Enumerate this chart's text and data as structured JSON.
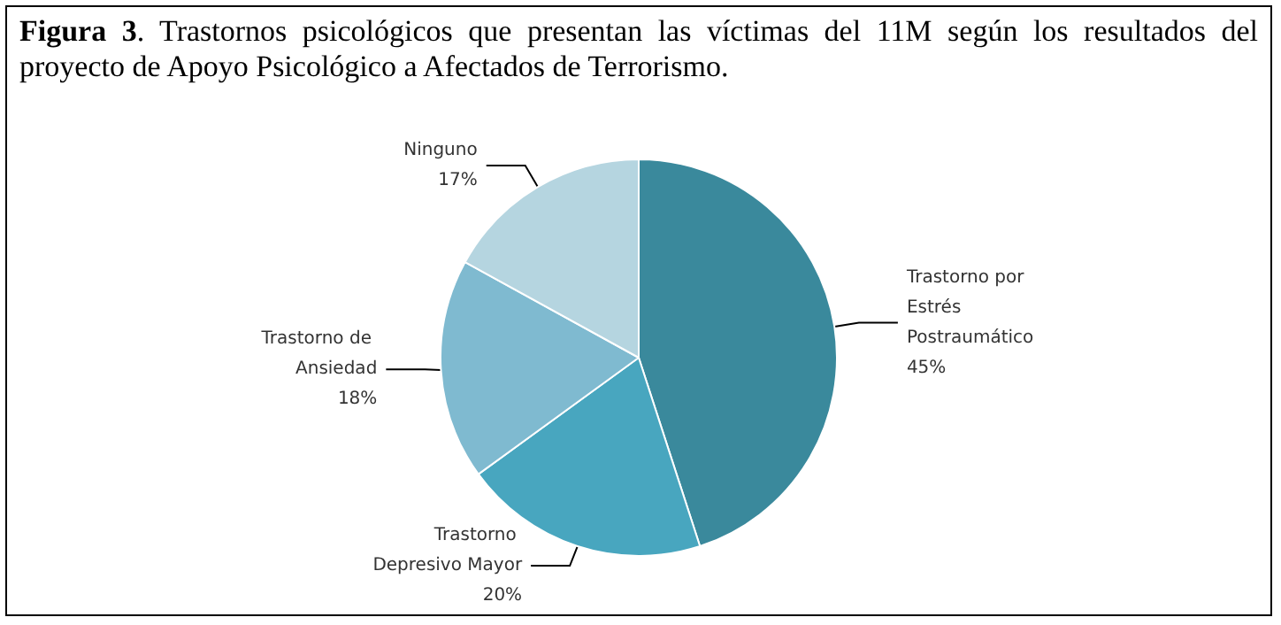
{
  "chart_data": {
    "type": "pie",
    "title": "Figura 3. Trastornos psicológicos que presentan las víctimas del 11M según los resultados del proyecto de Apoyo Psicológico a Afectados de Terrorismo.",
    "categories": [
      "Trastorno por Estrés Postraumático",
      "Trastorno Depresivo Mayor",
      "Trastorno de Ansiedad",
      "Ninguno"
    ],
    "values": [
      45,
      20,
      18,
      17
    ],
    "value_labels": [
      "45%",
      "20%",
      "18%",
      "17%"
    ],
    "colors": [
      "#3a899c",
      "#48a6bf",
      "#7fbad0",
      "#b5d5e0"
    ],
    "legend": false
  }
}
